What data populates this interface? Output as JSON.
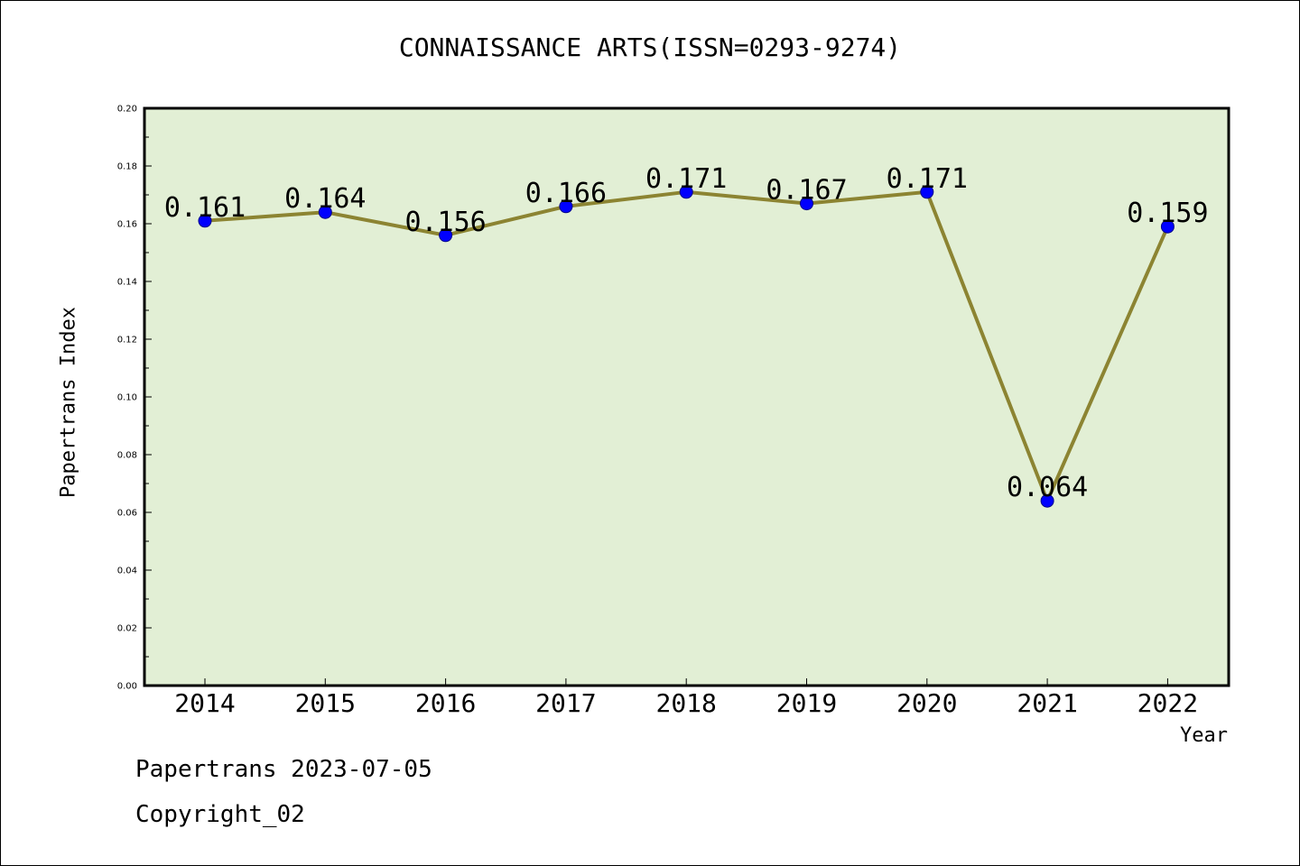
{
  "chart_data": {
    "type": "line",
    "title": "CONNAISSANCE ARTS(ISSN=0293-9274)",
    "xlabel": "Year",
    "ylabel": "Papertrans Index",
    "categories": [
      "2014",
      "2015",
      "2016",
      "2017",
      "2018",
      "2019",
      "2020",
      "2021",
      "2022"
    ],
    "values": [
      0.161,
      0.164,
      0.156,
      0.166,
      0.171,
      0.167,
      0.171,
      0.064,
      0.159
    ],
    "data_labels": [
      "0.161",
      "0.164",
      "0.156",
      "0.166",
      "0.171",
      "0.167",
      "0.171",
      "0.064",
      "0.159"
    ],
    "ylim": [
      0.0,
      0.2
    ],
    "y_ticks": [
      "0.00",
      "0.02",
      "0.04",
      "0.06",
      "0.08",
      "0.10",
      "0.12",
      "0.14",
      "0.16",
      "0.18",
      "0.20"
    ],
    "grid": false,
    "colors": {
      "plot_background": "#e2efd5",
      "line": "#8c8432",
      "marker": "#0000ff"
    }
  },
  "footer": {
    "date_text": "Papertrans 2023-07-05",
    "copyright_text": "Copyright_02"
  }
}
